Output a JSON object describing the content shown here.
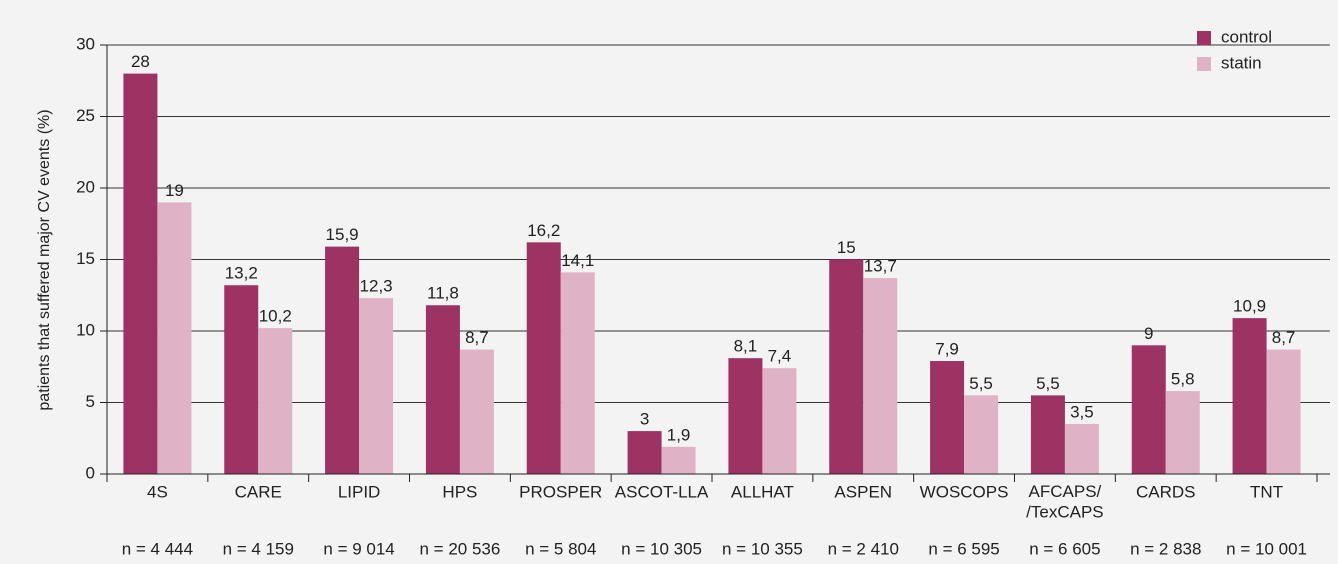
{
  "chart_data": {
    "type": "bar",
    "y_axis_label": "patients that suffered major CV events (%)",
    "categories": [
      "4S",
      "CARE",
      "LIPID",
      "HPS",
      "PROSPER",
      "ASCOT-LLA",
      "ALLHAT",
      "ASPEN",
      "WOSCOPS",
      "AFCAPS/\n/TexCAPS",
      "CARDS",
      "TNT"
    ],
    "sample_sizes": [
      "n = 4 444",
      "n = 4 159",
      "n = 9 014",
      "n = 20 536",
      "n = 5 804",
      "n = 10 305",
      "n = 10 355",
      "n = 2 410",
      "n = 6 595",
      "n = 6 605",
      "n = 2 838",
      "n = 10 001"
    ],
    "series": [
      {
        "name": "control",
        "color": "#9c3363",
        "values": [
          28,
          13.2,
          15.9,
          11.8,
          16.2,
          3,
          8.1,
          15,
          7.9,
          5.5,
          9,
          10.9
        ],
        "value_labels": [
          "28",
          "13,2",
          "15,9",
          "11,8",
          "16,2",
          "3",
          "8,1",
          "15",
          "7,9",
          "5,5",
          "9",
          "10,9"
        ]
      },
      {
        "name": "statin",
        "color": "#dfb3c5",
        "values": [
          19,
          10.2,
          12.3,
          8.7,
          14.1,
          1.9,
          7.4,
          13.7,
          5.5,
          3.5,
          5.8,
          8.7
        ],
        "value_labels": [
          "19",
          "10,2",
          "12,3",
          "8,7",
          "14,1",
          "1,9",
          "7,4",
          "13,7",
          "5,5",
          "3,5",
          "5,8",
          "8,7"
        ]
      }
    ],
    "ylim": [
      0,
      30
    ],
    "yticks": [
      0,
      5,
      10,
      15,
      20,
      25,
      30
    ],
    "grid": true,
    "legend_position": "top-right"
  }
}
